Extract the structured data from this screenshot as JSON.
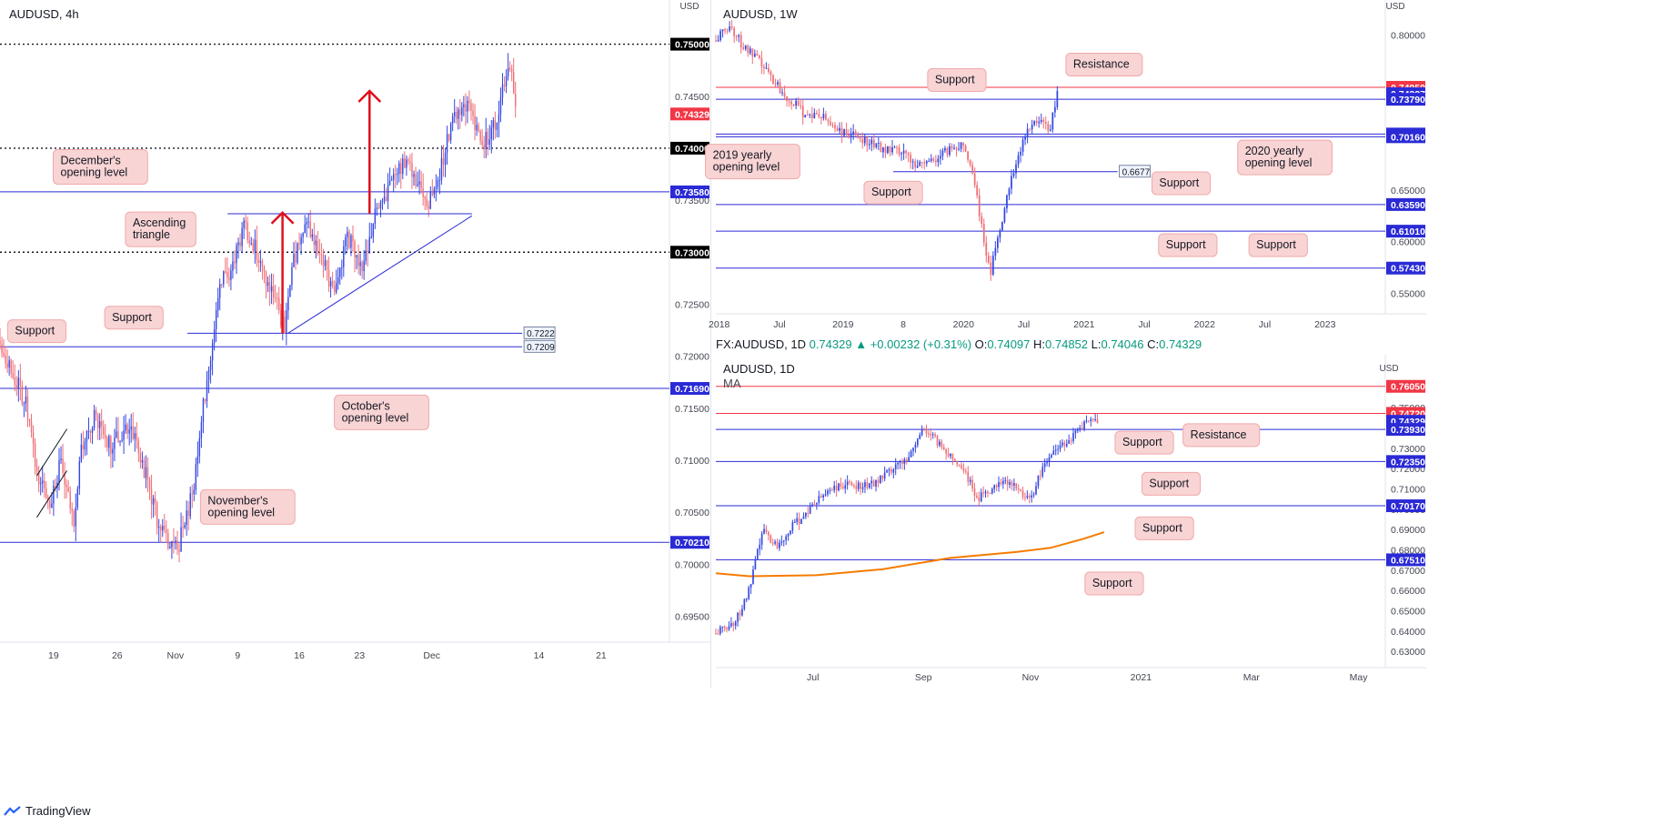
{
  "colors": {
    "bull": "#3548e0",
    "bear": "#ef6f77",
    "hline": "#2a2ad6",
    "resist": "#f23645",
    "callout_bg": "#f9d4d4",
    "callout_border": "#f0a9ab",
    "ma": "#f57c00",
    "arrow": "#e0101b",
    "axis_text": "#434651"
  },
  "panels": {
    "p4h": {
      "title": "AUDUSD, 4h",
      "currency": "USD"
    },
    "pw": {
      "title": "AUDUSD, 1W",
      "currency": "USD"
    },
    "pd": {
      "title": "AUDUSD, 1D",
      "subtitle": "MA",
      "currency": "USD"
    }
  },
  "infobar": {
    "symbol": "FX:AUDUSD, 1D",
    "last": "0.74329",
    "change": "+0.00232 (+0.31%)",
    "o_label": "O:",
    "o": "0.74097",
    "h_label": "H:",
    "h": "0.74852",
    "l_label": "L:",
    "l": "0.74046",
    "c_label": "C:",
    "c": "0.74329"
  },
  "footer": {
    "brand": "TradingView"
  },
  "chart_data": [
    {
      "id": "p4h",
      "type": "candlestick",
      "title": "AUDUSD, 4h",
      "ylim": [
        0.6925,
        0.7525
      ],
      "yticks": [
        "0.69500",
        "0.70000",
        "0.70500",
        "0.71000",
        "0.71500",
        "0.72000",
        "0.72500",
        "0.73000",
        "0.73500",
        "0.74000",
        "0.74500",
        "0.75000"
      ],
      "xticks": [
        {
          "label": "19",
          "x": 0.08
        },
        {
          "label": "26",
          "x": 0.175
        },
        {
          "label": "Nov",
          "x": 0.262
        },
        {
          "label": "9",
          "x": 0.355
        },
        {
          "label": "16",
          "x": 0.447
        },
        {
          "label": "23",
          "x": 0.537
        },
        {
          "label": "Dec",
          "x": 0.645
        },
        {
          "label": "14",
          "x": 0.805
        },
        {
          "label": "21",
          "x": 0.898
        }
      ],
      "price_tags": [
        {
          "value": 0.75,
          "text": "0.75000",
          "style": "black"
        },
        {
          "value": 0.74329,
          "text": "0.74329",
          "style": "red"
        },
        {
          "value": 0.74,
          "text": "0.74000",
          "style": "black"
        },
        {
          "value": 0.7358,
          "text": "0.73580",
          "style": "blue"
        },
        {
          "value": 0.73,
          "text": "0.73000",
          "style": "black"
        },
        {
          "value": 0.7169,
          "text": "0.71690",
          "style": "blue"
        },
        {
          "value": 0.7021,
          "text": "0.70210",
          "style": "blue"
        }
      ],
      "levels": [
        {
          "value": 0.75,
          "style": "dotted"
        },
        {
          "value": 0.74,
          "style": "dotted"
        },
        {
          "value": 0.73,
          "style": "dotted"
        },
        {
          "value": 0.7358,
          "style": "blue"
        },
        {
          "value": 0.7169,
          "style": "blue"
        },
        {
          "value": 0.7021,
          "style": "blue"
        },
        {
          "value": 0.7209,
          "style": "blue",
          "x_end": 0.78,
          "label": "0.7209"
        },
        {
          "value": 0.7222,
          "style": "blue",
          "x_start": 0.28,
          "x_end": 0.78,
          "label": "0.7222"
        }
      ],
      "callouts": [
        {
          "text": "December's opening level",
          "x": 0.15,
          "value": 0.7382
        },
        {
          "text": "Ascending triangle",
          "x": 0.24,
          "value": 0.7322
        },
        {
          "text": "Support",
          "x": 0.2,
          "value": 0.7237
        },
        {
          "text": "Support",
          "x": 0.055,
          "value": 0.7224
        },
        {
          "text": "October's opening level",
          "x": 0.57,
          "value": 0.7146
        },
        {
          "text": "November's opening level",
          "x": 0.37,
          "value": 0.7055
        }
      ]
    },
    {
      "id": "pw",
      "type": "candlestick",
      "title": "AUDUSD, 1W",
      "ylim": [
        0.53,
        0.82
      ],
      "yticks": [
        "0.55000",
        "0.60000",
        "0.65000",
        "0.70000",
        "0.75000",
        "0.80000"
      ],
      "xticks": [
        {
          "label": "2018",
          "x": 0.005
        },
        {
          "label": "Jul",
          "x": 0.095
        },
        {
          "label": "2019",
          "x": 0.19
        },
        {
          "label": "8",
          "x": 0.28
        },
        {
          "label": "2020",
          "x": 0.37
        },
        {
          "label": "Jul",
          "x": 0.46
        },
        {
          "label": "2021",
          "x": 0.55
        },
        {
          "label": "Jul",
          "x": 0.64
        },
        {
          "label": "2022",
          "x": 0.73
        },
        {
          "label": "Jul",
          "x": 0.82
        },
        {
          "label": "2023",
          "x": 0.91
        }
      ],
      "price_tags": [
        {
          "value": 0.7495,
          "text": "0.74950",
          "style": "red"
        },
        {
          "value": 0.74327,
          "text": "0.74327",
          "style": "blue"
        },
        {
          "value": 0.7379,
          "text": "0.73790",
          "style": "blue"
        },
        {
          "value": 0.7042,
          "text": "0.70420",
          "style": "blue"
        },
        {
          "value": 0.7016,
          "text": "0.70160",
          "style": "blue"
        },
        {
          "value": 0.6359,
          "text": "0.63590",
          "style": "blue"
        },
        {
          "value": 0.6101,
          "text": "0.61010",
          "style": "blue"
        },
        {
          "value": 0.5743,
          "text": "0.57430",
          "style": "blue"
        }
      ],
      "levels": [
        {
          "value": 0.7495,
          "style": "red"
        },
        {
          "value": 0.7379,
          "style": "blue"
        },
        {
          "value": 0.7042,
          "style": "blue"
        },
        {
          "value": 0.7016,
          "style": "blue"
        },
        {
          "value": 0.6359,
          "style": "blue"
        },
        {
          "value": 0.6101,
          "style": "blue"
        },
        {
          "value": 0.5743,
          "style": "blue"
        },
        {
          "value": 0.6677,
          "style": "blue",
          "x_start": 0.265,
          "x_end": 0.6,
          "label": "0.6677"
        }
      ],
      "callouts": [
        {
          "text": "Resistance",
          "x": 0.58,
          "value": 0.7715
        },
        {
          "text": "Support",
          "x": 0.36,
          "value": 0.7565
        },
        {
          "text": "2019 yearly opening level",
          "x": 0.055,
          "value": 0.6775
        },
        {
          "text": "Support",
          "x": 0.265,
          "value": 0.6475
        },
        {
          "text": "2020 yearly opening level",
          "x": 0.85,
          "value": 0.6815
        },
        {
          "text": "Support",
          "x": 0.695,
          "value": 0.6565
        },
        {
          "text": "Support",
          "x": 0.705,
          "value": 0.5965
        },
        {
          "text": "Support",
          "x": 0.84,
          "value": 0.5965
        }
      ]
    },
    {
      "id": "pd",
      "type": "candlestick",
      "title": "AUDUSD, 1D",
      "ylim": [
        0.622,
        0.768
      ],
      "yticks": [
        "0.63000",
        "0.64000",
        "0.65000",
        "0.66000",
        "0.67000",
        "0.68000",
        "0.69000",
        "0.70000",
        "0.71000",
        "0.72000",
        "0.73000",
        "0.74000",
        "0.75000"
      ],
      "xticks": [
        {
          "label": "Jul",
          "x": 0.145
        },
        {
          "label": "Sep",
          "x": 0.31
        },
        {
          "label": "Nov",
          "x": 0.47
        },
        {
          "label": "2021",
          "x": 0.635
        },
        {
          "label": "Mar",
          "x": 0.8
        },
        {
          "label": "May",
          "x": 0.96
        }
      ],
      "price_tags": [
        {
          "value": 0.7605,
          "text": "0.76050",
          "style": "red"
        },
        {
          "value": 0.7472,
          "text": "0.74720",
          "style": "red"
        },
        {
          "value": 0.74329,
          "text": "0.74329",
          "style": "blue"
        },
        {
          "value": 0.7393,
          "text": "0.73930",
          "style": "blue"
        },
        {
          "value": 0.7235,
          "text": "0.72350",
          "style": "blue"
        },
        {
          "value": 0.7017,
          "text": "0.70170",
          "style": "blue"
        },
        {
          "value": 0.6751,
          "text": "0.67510",
          "style": "blue"
        }
      ],
      "levels": [
        {
          "value": 0.7605,
          "style": "red"
        },
        {
          "value": 0.7472,
          "style": "red"
        },
        {
          "value": 0.7393,
          "style": "blue"
        },
        {
          "value": 0.7235,
          "style": "blue"
        },
        {
          "value": 0.7017,
          "style": "blue"
        },
        {
          "value": 0.6751,
          "style": "blue"
        }
      ],
      "callouts": [
        {
          "text": "Support",
          "x": 0.64,
          "value": 0.7328
        },
        {
          "text": "Resistance",
          "x": 0.755,
          "value": 0.7365
        },
        {
          "text": "Support",
          "x": 0.68,
          "value": 0.7125
        },
        {
          "text": "Support",
          "x": 0.67,
          "value": 0.6906
        },
        {
          "text": "Support",
          "x": 0.595,
          "value": 0.6634
        }
      ],
      "ma_series": [
        [
          0.0,
          0.6685
        ],
        [
          0.05,
          0.667
        ],
        [
          0.15,
          0.6675
        ],
        [
          0.25,
          0.6705
        ],
        [
          0.35,
          0.676
        ],
        [
          0.45,
          0.679
        ],
        [
          0.5,
          0.681
        ],
        [
          0.55,
          0.6855
        ],
        [
          0.58,
          0.6887
        ]
      ]
    }
  ]
}
